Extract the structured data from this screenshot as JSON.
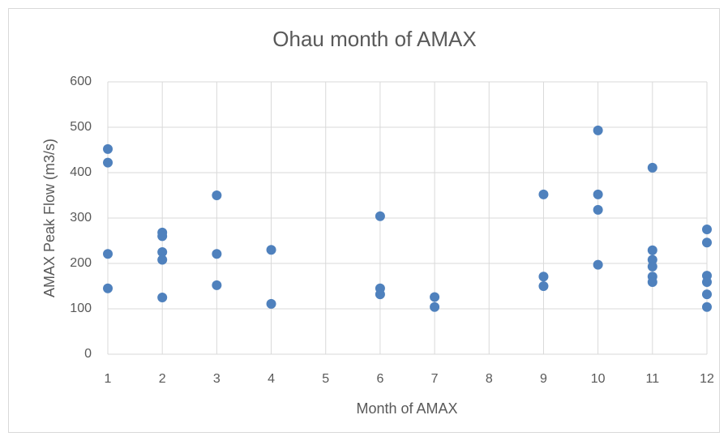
{
  "chart_data": {
    "type": "scatter",
    "title": "Ohau month of AMAX",
    "x_label": "Month of AMAX",
    "y_label": "AMAX Peak Flow (m3/s)",
    "x": [
      1,
      1,
      1,
      1,
      2,
      2,
      2,
      2,
      2,
      3,
      3,
      3,
      4,
      4,
      6,
      6,
      6,
      7,
      7,
      9,
      9,
      9,
      10,
      10,
      10,
      10,
      11,
      11,
      11,
      11,
      11,
      11,
      12,
      12,
      12,
      12,
      12,
      12
    ],
    "values": [
      452,
      422,
      221,
      145,
      268,
      260,
      225,
      208,
      125,
      350,
      221,
      152,
      230,
      111,
      304,
      145,
      132,
      126,
      104,
      352,
      171,
      150,
      493,
      352,
      318,
      197,
      411,
      229,
      208,
      193,
      171,
      159,
      275,
      246,
      173,
      159,
      132,
      104
    ],
    "color": "#4f81bd",
    "xlim": [
      1,
      12
    ],
    "xticks": [
      1,
      2,
      3,
      4,
      5,
      6,
      7,
      8,
      9,
      10,
      11,
      12
    ],
    "ylim": [
      0,
      600
    ],
    "yticks": [
      0,
      100,
      200,
      300,
      400,
      500,
      600
    ],
    "grid": true
  }
}
